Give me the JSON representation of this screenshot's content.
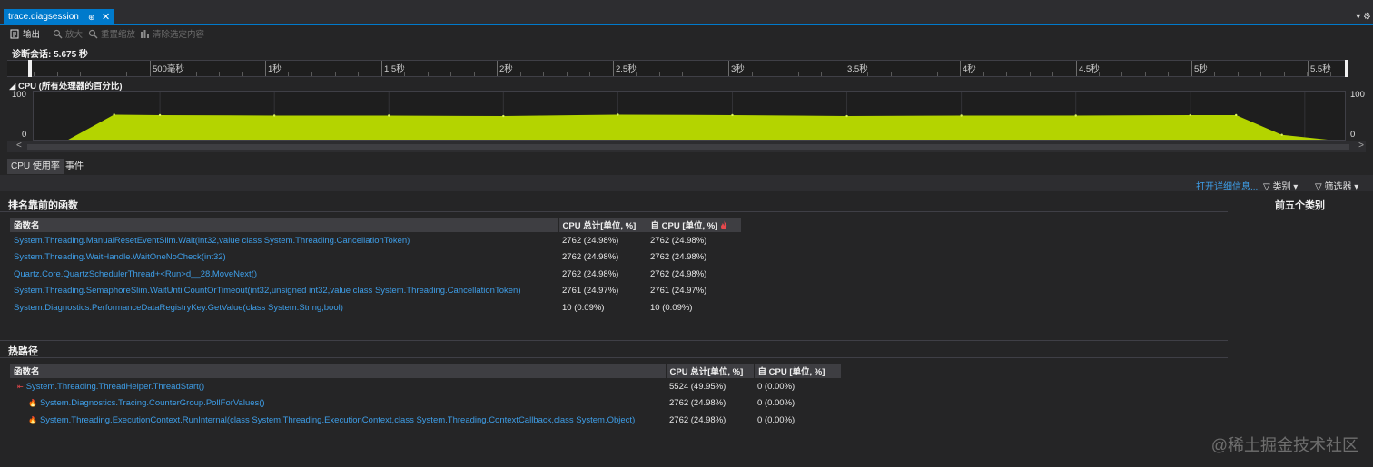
{
  "tab": {
    "title": "trace.diagsession",
    "pin": "⊕",
    "close": "✕",
    "menu": "▾ ⚙"
  },
  "toolbar": {
    "export": "输出",
    "zoom_in": "放大",
    "reset_zoom": "重置缩放",
    "clear_selection": "清除选定内容"
  },
  "session": "诊断会话: 5.675 秒",
  "ruler_labels": [
    "500毫秒",
    "1秒",
    "1.5秒",
    "2秒",
    "2.5秒",
    "3秒",
    "3.5秒",
    "4秒",
    "4.5秒",
    "5秒",
    "5.5秒"
  ],
  "cpu_graph": {
    "title": "CPU (所有处理器的百分比)",
    "y_max": "100",
    "y_min": "0",
    "fill_color": "#b4d400"
  },
  "chart_data": {
    "type": "area",
    "title": "CPU (所有处理器的百分比)",
    "ylim": [
      0,
      100
    ],
    "x_unit": "秒",
    "x": [
      0.1,
      0.3,
      0.5,
      1.0,
      1.5,
      2.0,
      2.5,
      3.0,
      3.5,
      4.0,
      4.5,
      5.0,
      5.2,
      5.4,
      5.6
    ],
    "values": [
      0,
      52,
      51,
      50,
      50,
      49,
      52,
      51,
      49,
      50,
      50,
      51,
      51,
      10,
      0
    ],
    "grid": true
  },
  "lower_tabs": [
    "CPU 使用率",
    "事件"
  ],
  "actions": {
    "open_details": "打开详细信息...",
    "category": "类别",
    "filter": "筛选器"
  },
  "top_functions": {
    "title": "排名靠前的函数",
    "columns": [
      "函数名",
      "CPU 总计[单位, %]",
      "自 CPU [单位, %]"
    ],
    "rows": [
      [
        "System.Threading.ManualResetEventSlim.Wait(int32,value class System.Threading.CancellationToken)",
        "2762 (24.98%)",
        "2762 (24.98%)"
      ],
      [
        "System.Threading.WaitHandle.WaitOneNoCheck(int32)",
        "2762 (24.98%)",
        "2762 (24.98%)"
      ],
      [
        "Quartz.Core.QuartzSchedulerThread+<Run>d__28.MoveNext()",
        "2762 (24.98%)",
        "2762 (24.98%)"
      ],
      [
        "System.Threading.SemaphoreSlim.WaitUntilCountOrTimeout(int32,unsigned int32,value class System.Threading.CancellationToken)",
        "2761 (24.97%)",
        "2761 (24.97%)"
      ],
      [
        "System.Diagnostics.PerformanceDataRegistryKey.GetValue(class System.String,bool)",
        "10 (0.09%)",
        "10 (0.09%)"
      ]
    ]
  },
  "top5_title": "前五个类别",
  "hot_path": {
    "title": "热路径",
    "columns": [
      "函数名",
      "CPU 总计[单位, %]",
      "自 CPU [单位, %]"
    ],
    "rows": [
      [
        "System.Threading.ThreadHelper.ThreadStart()",
        "5524 (49.95%)",
        "0 (0.00%)"
      ],
      [
        "System.Diagnostics.Tracing.CounterGroup.PollForValues()",
        "2762 (24.98%)",
        "0 (0.00%)"
      ],
      [
        "System.Threading.ExecutionContext.RunInternal(class System.Threading.ExecutionContext,class System.Threading.ContextCallback,class System.Object)",
        "2762 (24.98%)",
        "0 (0.00%)"
      ]
    ]
  },
  "watermark": "@稀土掘金技术社区"
}
